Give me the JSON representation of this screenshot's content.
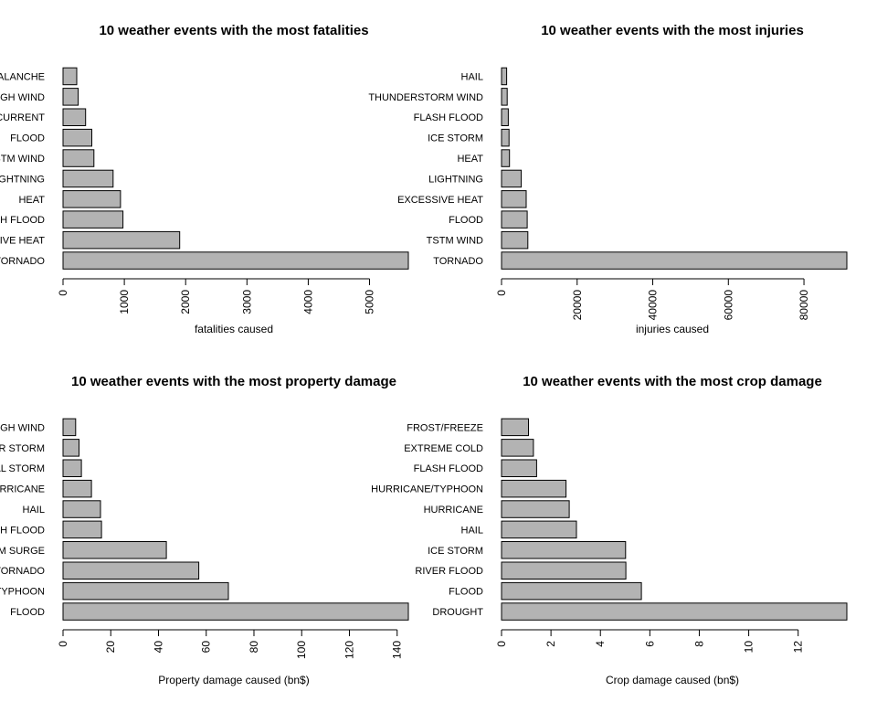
{
  "chart_data": [
    {
      "type": "bar",
      "orientation": "horizontal",
      "title": "10 weather events with the most fatalities",
      "xlabel": "fatalities caused",
      "categories": [
        "TORNADO",
        "EXCESSIVE HEAT",
        "FLASH FLOOD",
        "HEAT",
        "LIGHTNING",
        "TSTM WIND",
        "FLOOD",
        "RIP CURRENT",
        "HIGH WIND",
        "AVALANCHE"
      ],
      "values": [
        5633,
        1903,
        978,
        937,
        816,
        504,
        470,
        368,
        248,
        224
      ],
      "xlim": [
        0,
        5633
      ],
      "xticks": [
        0,
        1000,
        2000,
        3000,
        4000,
        5000
      ]
    },
    {
      "type": "bar",
      "orientation": "horizontal",
      "title": "10 weather events with the most injuries",
      "xlabel": "injuries caused",
      "categories": [
        "TORNADO",
        "TSTM WIND",
        "FLOOD",
        "EXCESSIVE HEAT",
        "LIGHTNING",
        "HEAT",
        "ICE STORM",
        "FLASH FLOOD",
        "THUNDERSTORM WIND",
        "HAIL"
      ],
      "values": [
        91346,
        6957,
        6789,
        6525,
        5230,
        2100,
        1975,
        1777,
        1488,
        1361
      ],
      "xlim": [
        0,
        91346
      ],
      "xticks": [
        0,
        20000,
        40000,
        60000,
        80000
      ]
    },
    {
      "type": "bar",
      "orientation": "horizontal",
      "title": "10 weather events with the most property damage",
      "xlabel": "Property damage caused (bn$)",
      "categories": [
        "FLOOD",
        "HURRICANE/TYPHOON",
        "TORNADO",
        "STORM SURGE",
        "FLASH FLOOD",
        "HAIL",
        "HURRICANE",
        "TROPICAL STORM",
        "WINTER STORM",
        "HIGH WIND"
      ],
      "values": [
        144.7,
        69.3,
        56.9,
        43.3,
        16.1,
        15.7,
        11.9,
        7.7,
        6.7,
        5.3
      ],
      "xlim": [
        0,
        144.7
      ],
      "xticks": [
        0,
        20,
        40,
        60,
        80,
        100,
        120,
        140
      ]
    },
    {
      "type": "bar",
      "orientation": "horizontal",
      "title": "10 weather events with the most crop damage",
      "xlabel": "Crop damage caused (bn$)",
      "categories": [
        "DROUGHT",
        "FLOOD",
        "RIVER FLOOD",
        "ICE STORM",
        "HAIL",
        "HURRICANE",
        "HURRICANE/TYPHOON",
        "FLASH FLOOD",
        "EXTREME COLD",
        "FROST/FREEZE"
      ],
      "values": [
        13.97,
        5.66,
        5.03,
        5.02,
        3.03,
        2.74,
        2.61,
        1.42,
        1.29,
        1.09
      ],
      "xlim": [
        0,
        13.97
      ],
      "xticks": [
        0,
        2,
        4,
        6,
        8,
        10,
        12
      ]
    }
  ]
}
